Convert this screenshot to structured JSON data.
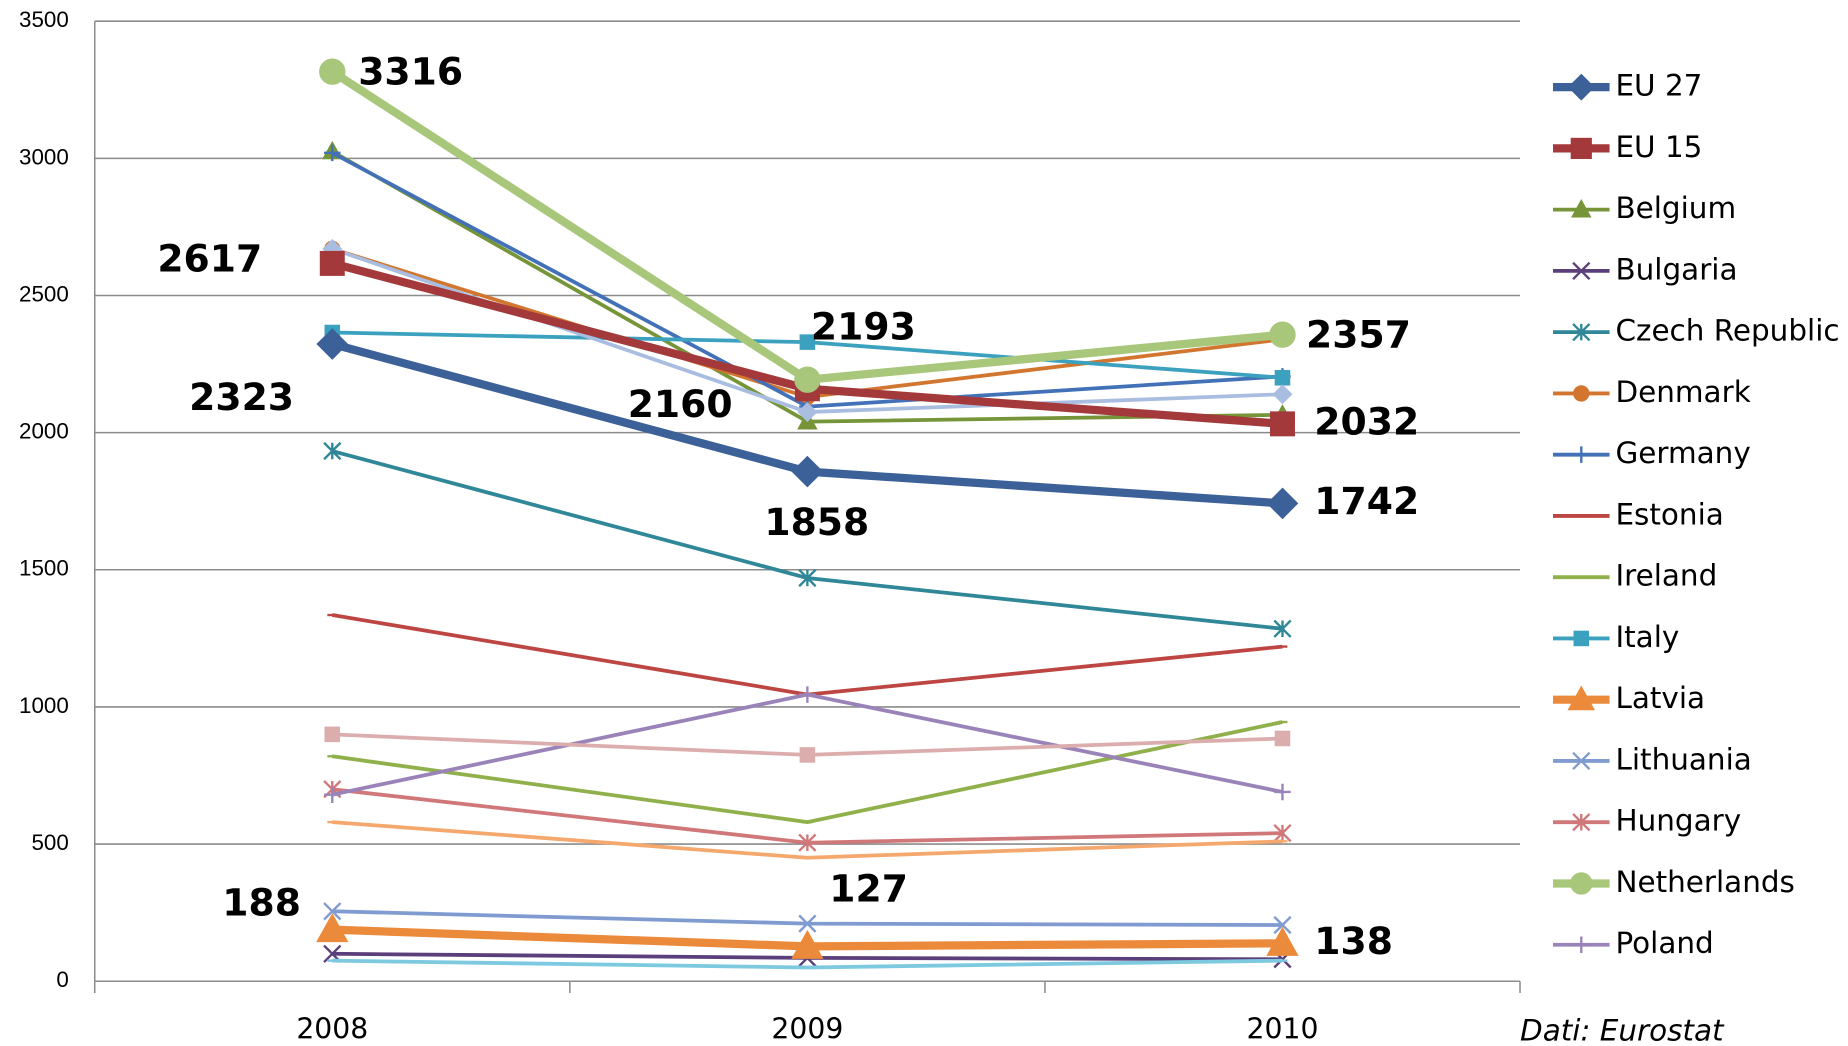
{
  "chart_data": {
    "type": "line",
    "categories": [
      "2008",
      "2009",
      "2010"
    ],
    "ylim": [
      0,
      3500
    ],
    "yticks": [
      0,
      500,
      1000,
      1500,
      2000,
      2500,
      3000,
      3500
    ],
    "grid": true,
    "legend": "right",
    "source": "Dati: Eurostat",
    "series": [
      {
        "name": "EU 27",
        "color": "#3c6098",
        "marker": "diamond",
        "data_labels": true,
        "values": [
          2323,
          1858,
          1742
        ]
      },
      {
        "name": "EU 15",
        "color": "#a3393a",
        "marker": "square",
        "data_labels": true,
        "values": [
          2617,
          2160,
          2032
        ]
      },
      {
        "name": "Belgium",
        "color": "#769538",
        "marker": "triangle",
        "values": [
          3025,
          2040,
          2065
        ]
      },
      {
        "name": "Bulgaria",
        "color": "#5b3f7a",
        "marker": "x",
        "values": [
          100,
          85,
          80
        ]
      },
      {
        "name": "Czech Republic",
        "color": "#2f8797",
        "marker": "asterisk",
        "values": [
          1933,
          1470,
          1285
        ]
      },
      {
        "name": "Denmark",
        "color": "#d2762f",
        "marker": "circle",
        "values": [
          2670,
          2130,
          2340
        ]
      },
      {
        "name": "Germany",
        "color": "#4371b8",
        "marker": "plus",
        "values": [
          3020,
          2095,
          2205
        ]
      },
      {
        "name": "Estonia",
        "color": "#bd4542",
        "marker": "dash",
        "values": [
          1335,
          1045,
          1220
        ]
      },
      {
        "name": "Ireland",
        "color": "#8fb04a",
        "marker": "dash",
        "values": [
          820,
          580,
          945
        ]
      },
      {
        "name": "Italy",
        "color": "#3ba1bf",
        "marker": "square",
        "values": [
          2365,
          2330,
          2200
        ]
      },
      {
        "name": "Latvia",
        "color": "#ec8a3b",
        "marker": "triangle",
        "data_labels": true,
        "values": [
          188,
          127,
          138
        ]
      },
      {
        "name": "Lithuania",
        "color": "#7f9bd0",
        "marker": "x",
        "values": [
          255,
          210,
          205
        ]
      },
      {
        "name": "Hungary",
        "color": "#d0777a",
        "marker": "asterisk",
        "values": [
          700,
          505,
          540
        ]
      },
      {
        "name": "Netherlands",
        "color": "#a8c77b",
        "marker": "circle",
        "data_labels": true,
        "values": [
          3316,
          2193,
          2357
        ]
      },
      {
        "name": "Poland",
        "color": "#9a83b8",
        "marker": "plus",
        "values": [
          680,
          1045,
          690
        ]
      },
      {
        "color": "#dcadad",
        "marker": "square",
        "values": [
          900,
          825,
          885
        ]
      },
      {
        "color": "#f5a86e",
        "marker": "dash",
        "values": [
          580,
          450,
          510
        ]
      },
      {
        "color": "#7dc9df",
        "marker": "dash",
        "values": [
          75,
          50,
          75
        ]
      },
      {
        "color": "#a9bde0",
        "marker": "diamond",
        "values": [
          2670,
          2075,
          2140
        ]
      }
    ]
  }
}
